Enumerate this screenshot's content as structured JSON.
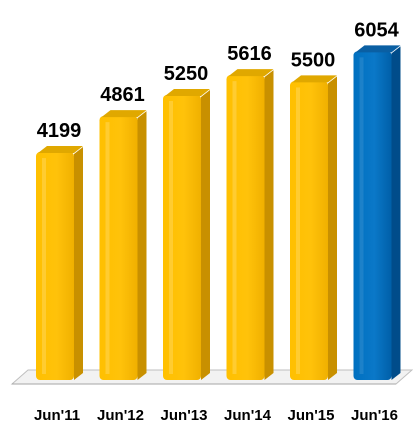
{
  "chart_data": {
    "type": "bar",
    "categories": [
      "Jun'11",
      "Jun'12",
      "Jun'13",
      "Jun'14",
      "Jun'15",
      "Jun'16"
    ],
    "values": [
      4199,
      4861,
      5250,
      5616,
      5500,
      6054
    ],
    "data_labels": [
      "4199",
      "4861",
      "5250",
      "5616",
      "5500",
      "6054"
    ],
    "title": "",
    "xlabel": "",
    "ylabel": "",
    "ylim": [
      0,
      6300
    ],
    "grid": false,
    "legend": "none",
    "style": "3d-cylinder",
    "colors": {
      "default_bar": "#FFC000",
      "default_bar_shade": "#C89000",
      "default_bar_top": "#E0A800",
      "highlight_bar": "#0070C0",
      "highlight_bar_shade": "#004C8A",
      "highlight_bar_top": "#0A5FA3",
      "floor": "#F2F2F2",
      "floor_edge": "#BFBFBF"
    },
    "highlight_index": 5
  }
}
